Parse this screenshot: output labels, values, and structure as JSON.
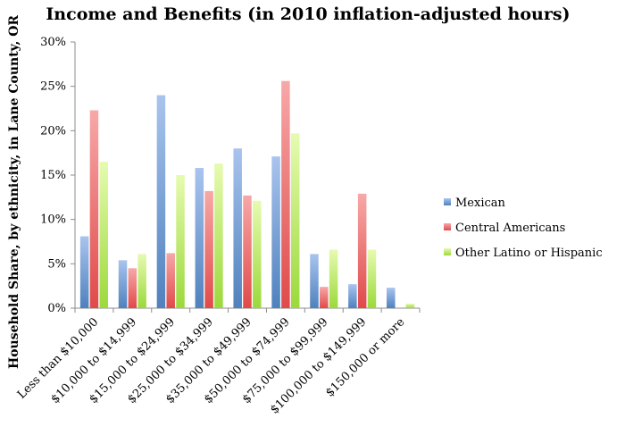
{
  "chart_data": {
    "type": "bar",
    "title": "Income and Benefits (in 2010 inflation-adjusted hours)",
    "xlabel": "",
    "ylabel": "Household Share, by ethnicity, in Lane County, OR",
    "ylim": [
      0,
      30
    ],
    "yticks": [
      0,
      5,
      10,
      15,
      20,
      25,
      30
    ],
    "ytick_suffix": "%",
    "grid": false,
    "legend_position": "right",
    "categories": [
      "Less than $10,000",
      "$10,000 to $14,999",
      "$15,000 to $24,999",
      "$25,000 to $34,999",
      "$35,000 to $49,999",
      "$50,000 to $74,999",
      "$75,000 to $99,999",
      "$100,000 to $149,999",
      "$150,000 or more"
    ],
    "series": [
      {
        "name": "Mexican",
        "color": "#4f81bd",
        "light": "#a9c4ee",
        "values": [
          8.1,
          5.4,
          24.0,
          15.8,
          18.0,
          17.1,
          6.1,
          2.7,
          2.3
        ]
      },
      {
        "name": "Central Americans",
        "color": "#e04a4a",
        "light": "#f7a8a8",
        "values": [
          22.3,
          4.5,
          6.2,
          13.2,
          12.7,
          25.6,
          2.4,
          12.9,
          0.0
        ]
      },
      {
        "name": "Other Latino or Hispanic",
        "color": "#9bd93b",
        "light": "#e6fbb0",
        "values": [
          16.5,
          6.1,
          15.0,
          16.3,
          12.1,
          19.7,
          6.6,
          6.6,
          0.5
        ]
      }
    ]
  }
}
